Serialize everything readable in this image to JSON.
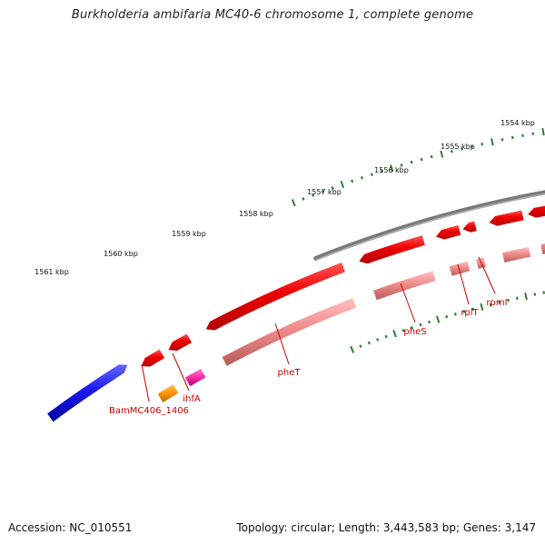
{
  "title": "Burkholderia ambifaria MC40-6 chromosome 1, complete genome",
  "footer": {
    "accession": "Accession: NC_010551",
    "summary": "Topology: circular; Length: 3,443,583 bp; Genes: 3,147"
  },
  "colors": {
    "backbone": "#7a7a7a",
    "tick": "#2e7d32",
    "label_text": "#111111",
    "gene_label": "#cc0000",
    "gene_red": "#ee0000",
    "gene_blue": "#1a1aee",
    "gene_pink": "#f08c8c",
    "gene_magenta": "#ff33aa",
    "gene_orange": "#ff9900"
  },
  "ruler_labels": [
    "1554 kbp",
    "1555 kbp",
    "1556 kbp",
    "1557 kbp",
    "1558 kbp",
    "1559 kbp",
    "1560 kbp",
    "1561 kbp"
  ],
  "gene_labels": [
    "BamMC406_1406",
    "ihfA",
    "pheT",
    "pheS",
    "rplT",
    "rpmI"
  ]
}
